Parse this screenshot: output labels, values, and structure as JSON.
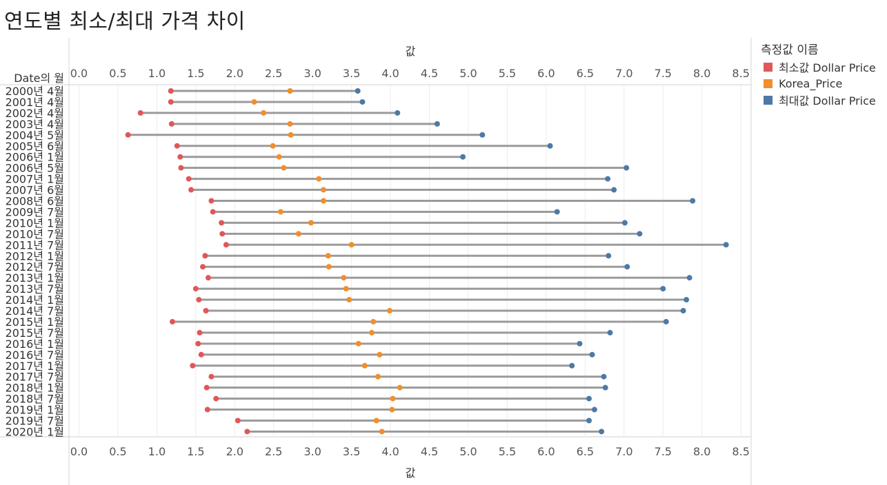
{
  "title": "연도별 최소/최대 가격 차이",
  "legend": {
    "title": "측정값 이름",
    "items": [
      {
        "label": "최소값 Dollar Price",
        "color": "#e15759"
      },
      {
        "label": "Korea_Price",
        "color": "#f28e2b"
      },
      {
        "label": "최대값 Dollar Price",
        "color": "#4e79a7"
      }
    ]
  },
  "chart_data": {
    "type": "dumbbell",
    "xlabel_top": "값",
    "xlabel_bottom": "값",
    "row_header": "Date의 월",
    "xlim": [
      0,
      8.5
    ],
    "xticks": [
      "0.0",
      "0.5",
      "1.0",
      "1.5",
      "2.0",
      "2.5",
      "3.0",
      "3.5",
      "4.0",
      "4.5",
      "5.0",
      "5.5",
      "6.0",
      "6.5",
      "7.0",
      "7.5",
      "8.0",
      "8.5"
    ],
    "grid": true,
    "categories": [
      "2000년 4월",
      "2001년 4월",
      "2002년 4월",
      "2003년 4월",
      "2004년 5월",
      "2005년 6월",
      "2006년 1월",
      "2006년 5월",
      "2007년 1월",
      "2007년 6월",
      "2008년 6월",
      "2009년 7월",
      "2010년 1월",
      "2010년 7월",
      "2011년 7월",
      "2012년 1월",
      "2012년 7월",
      "2013년 1월",
      "2013년 7월",
      "2014년 1월",
      "2014년 7월",
      "2015년 1월",
      "2015년 7월",
      "2016년 1월",
      "2016년 7월",
      "2017년 1월",
      "2017년 7월",
      "2018년 1월",
      "2018년 7월",
      "2019년 1월",
      "2019년 7월",
      "2020년 1월"
    ],
    "series": [
      {
        "name": "최소값 Dollar Price",
        "color": "#e15759",
        "values": [
          1.18,
          1.18,
          0.79,
          1.19,
          0.63,
          1.26,
          1.3,
          1.31,
          1.41,
          1.44,
          1.7,
          1.72,
          1.83,
          1.84,
          1.89,
          1.62,
          1.59,
          1.66,
          1.5,
          1.54,
          1.63,
          1.2,
          1.55,
          1.53,
          1.57,
          1.46,
          1.7,
          1.64,
          1.76,
          1.65,
          2.04,
          2.16
        ]
      },
      {
        "name": "Korea_Price",
        "color": "#f28e2b",
        "values": [
          2.71,
          2.25,
          2.37,
          2.71,
          2.72,
          2.49,
          2.57,
          2.63,
          3.08,
          3.14,
          3.14,
          2.59,
          2.98,
          2.82,
          3.5,
          3.2,
          3.21,
          3.4,
          3.43,
          3.47,
          3.99,
          3.78,
          3.76,
          3.59,
          3.86,
          3.67,
          3.84,
          4.12,
          4.03,
          4.02,
          3.82,
          3.89
        ]
      },
      {
        "name": "최대값 Dollar Price",
        "color": "#4e79a7",
        "values": [
          3.58,
          3.64,
          4.09,
          4.6,
          5.18,
          6.05,
          4.93,
          7.03,
          6.79,
          6.87,
          7.88,
          6.14,
          7.01,
          7.2,
          8.31,
          6.8,
          7.04,
          7.84,
          7.5,
          7.8,
          7.76,
          7.54,
          6.82,
          6.43,
          6.59,
          6.33,
          6.74,
          6.76,
          6.55,
          6.62,
          6.55,
          6.71
        ]
      }
    ]
  }
}
